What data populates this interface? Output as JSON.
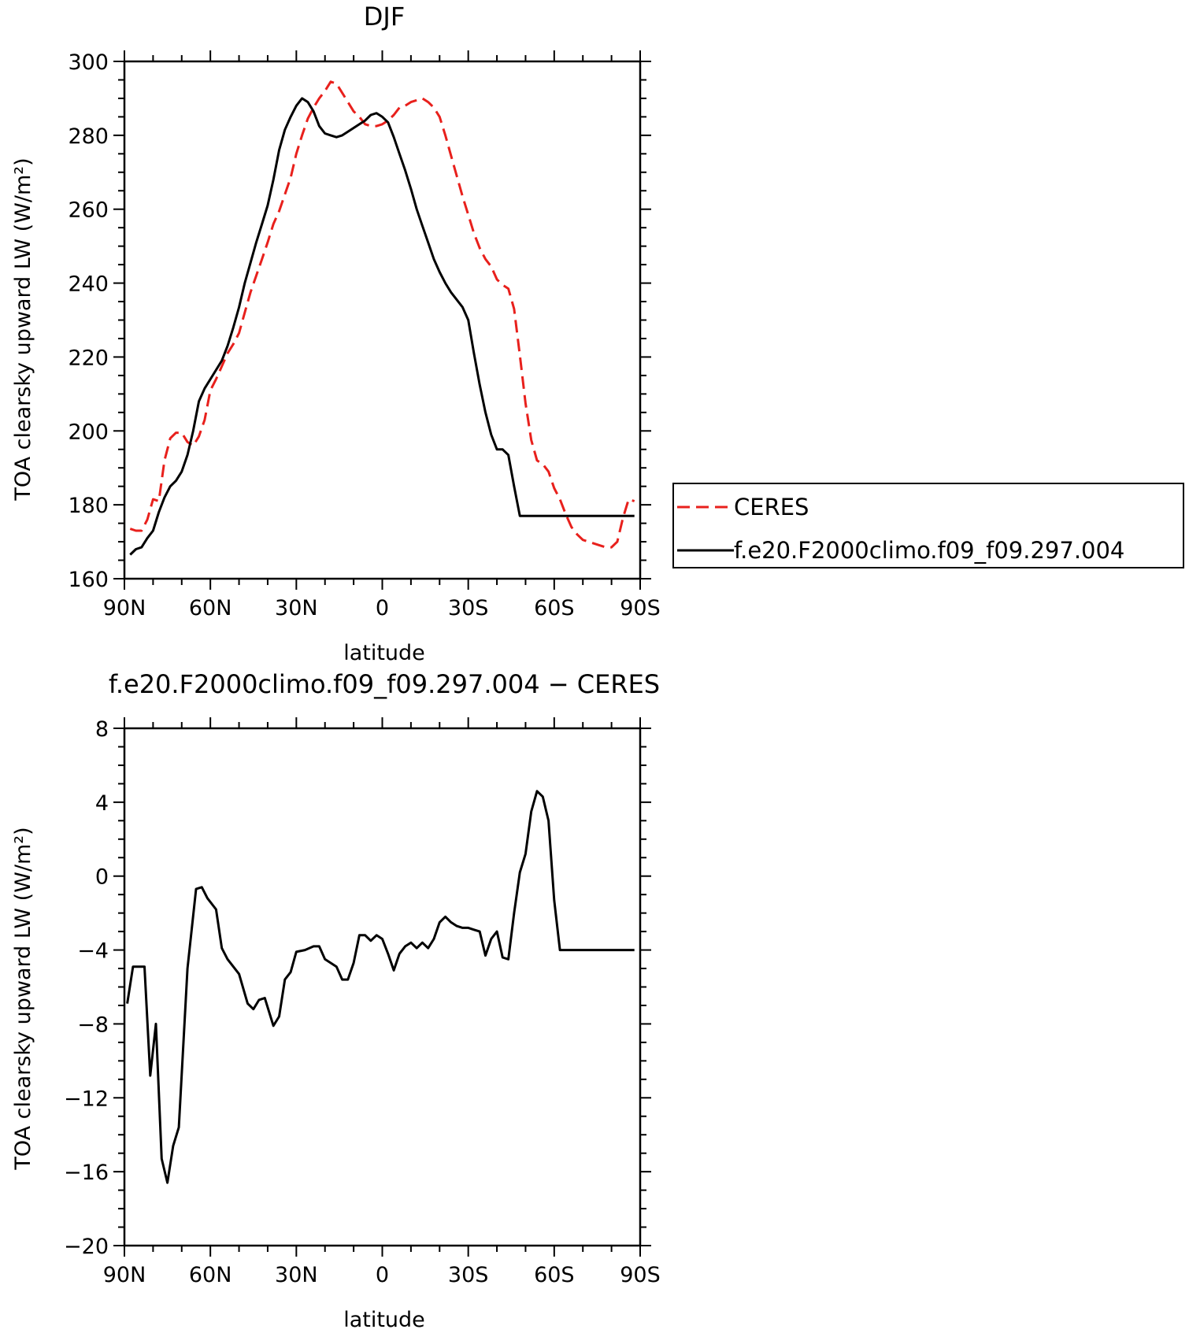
{
  "chart_data": [
    {
      "type": "line",
      "title": "DJF",
      "xlabel": "latitude",
      "ylabel": "TOA clearsky upward LW (W/m²)",
      "xlim": [
        -90,
        90
      ],
      "ylim": [
        160,
        300
      ],
      "yticks": [
        160,
        180,
        200,
        220,
        240,
        260,
        280,
        300
      ],
      "xticks": [
        -90,
        -60,
        -30,
        0,
        30,
        60,
        90
      ],
      "xticklabels": [
        "90N",
        "60N",
        "30N",
        "0",
        "30S",
        "60S",
        "90S"
      ],
      "legend_position": "right",
      "x": [
        -88,
        -86,
        -84,
        -82,
        -80,
        -78,
        -76,
        -74,
        -72,
        -70,
        -68,
        -66,
        -64,
        -62,
        -60,
        -58,
        -56,
        -54,
        -52,
        -50,
        -48,
        -46,
        -44,
        -42,
        -40,
        -38,
        -36,
        -34,
        -32,
        -30,
        -28,
        -26,
        -24,
        -22,
        -20,
        -18,
        -16,
        -14,
        -12,
        -10,
        -8,
        -6,
        -4,
        -2,
        0,
        2,
        4,
        6,
        8,
        10,
        12,
        14,
        16,
        18,
        20,
        22,
        24,
        26,
        28,
        30,
        32,
        34,
        36,
        38,
        40,
        42,
        44,
        46,
        48,
        50,
        52,
        54,
        56,
        58,
        60,
        62,
        64,
        66,
        68,
        70,
        72,
        74,
        76,
        78,
        80,
        82,
        84,
        86,
        88
      ],
      "series": [
        {
          "name": "CERES",
          "color": "#e8201c",
          "dash": true,
          "values": [
            173.5,
            173.0,
            173.0,
            176.0,
            181.5,
            181.0,
            192.0,
            198.0,
            199.5,
            199.5,
            197.0,
            196.0,
            198.5,
            203.0,
            211.0,
            214.0,
            217.5,
            221.0,
            223.5,
            226.5,
            232.0,
            237.5,
            242.0,
            246.5,
            251.0,
            256.0,
            259.5,
            264.0,
            268.5,
            275.0,
            280.0,
            284.5,
            287.5,
            290.0,
            292.0,
            294.5,
            294.0,
            291.5,
            289.0,
            286.5,
            285.0,
            283.0,
            282.5,
            282.5,
            283.0,
            284.0,
            285.5,
            287.5,
            288.0,
            289.0,
            289.5,
            290.0,
            289.0,
            287.5,
            285.0,
            280.0,
            274.5,
            269.0,
            263.5,
            258.5,
            253.5,
            249.5,
            246.5,
            244.5,
            241.0,
            239.5,
            238.5,
            233.0,
            220.5,
            207.5,
            197.5,
            192.0,
            191.0,
            189.0,
            184.5,
            181.5,
            177.5,
            174.0,
            172.0,
            170.5,
            170.0,
            169.5,
            169.0,
            168.5,
            168.5,
            170.0,
            176.5,
            181.5,
            181.0
          ]
        },
        {
          "name": "f.e20.F2000climo.f09_f09.297.004",
          "color": "#000000",
          "dash": false,
          "values": [
            166.5,
            168.0,
            168.5,
            171.0,
            173.0,
            178.0,
            182.0,
            185.0,
            186.5,
            189.0,
            193.5,
            200.0,
            208.0,
            211.5,
            214.0,
            216.5,
            219.0,
            223.0,
            228.0,
            233.5,
            240.0,
            245.5,
            251.0,
            256.0,
            261.0,
            268.0,
            276.0,
            281.5,
            285.0,
            288.0,
            290.0,
            289.0,
            286.5,
            282.5,
            280.5,
            280.0,
            279.5,
            280.0,
            281.0,
            282.0,
            283.0,
            284.0,
            285.5,
            286.0,
            285.0,
            283.5,
            279.5,
            275.0,
            270.5,
            265.5,
            260.0,
            255.5,
            251.0,
            246.5,
            243.0,
            240.0,
            237.5,
            235.5,
            233.5,
            230.0,
            221.0,
            212.5,
            205.0,
            199.0,
            195.0,
            195.0,
            193.5,
            185.0,
            177.0,
            177.0,
            177.0,
            177.0,
            177.0,
            177.0,
            177.0,
            177.0,
            177.0,
            177.0,
            177.0,
            177.0,
            177.0,
            177.0,
            177.0,
            177.0,
            177.0,
            177.0,
            177.0,
            177.0,
            177.0
          ]
        }
      ]
    },
    {
      "type": "line",
      "title": "f.e20.F2000climo.f09_f09.297.004 − CERES",
      "xlabel": "latitude",
      "ylabel": "TOA clearsky upward LW (W/m²)",
      "xlim": [
        -90,
        90
      ],
      "ylim": [
        -20,
        8
      ],
      "yticks": [
        -20,
        -16,
        -12,
        -8,
        -4,
        0,
        4,
        8
      ],
      "yticklabels": [
        "−20",
        "−16",
        "−12",
        "−8",
        "−4",
        "0",
        "4",
        "8"
      ],
      "xticks": [
        -90,
        -60,
        -30,
        0,
        30,
        60,
        90
      ],
      "xticklabels": [
        "90N",
        "60N",
        "30N",
        "0",
        "30S",
        "60S",
        "90S"
      ],
      "x": [
        -89,
        -87,
        -85,
        -83,
        -81,
        -79,
        -77,
        -75,
        -73,
        -71,
        -68,
        -65,
        -63,
        -61,
        -58,
        -56,
        -54,
        -50,
        -47,
        -45,
        -43,
        -41,
        -38,
        -36,
        -34,
        -32,
        -30,
        -27,
        -24,
        -22,
        -20,
        -18,
        -16,
        -14,
        -12,
        -10,
        -8,
        -6,
        -4,
        -2,
        0,
        2,
        4,
        6,
        8,
        10,
        12,
        14,
        16,
        18,
        20,
        22,
        24,
        26,
        28,
        30,
        32,
        34,
        36,
        38,
        40,
        42,
        44,
        46,
        48,
        50,
        52,
        54,
        56,
        58,
        60,
        62,
        64,
        66,
        68,
        70,
        72,
        74,
        76,
        78,
        80,
        82,
        84,
        86,
        88
      ],
      "series": [
        {
          "name": "",
          "color": "#000000",
          "dash": false,
          "values": [
            -6.9,
            -4.9,
            -4.9,
            -4.9,
            -10.8,
            -8.0,
            -15.3,
            -16.6,
            -14.6,
            -13.6,
            -5.0,
            -0.7,
            -0.6,
            -1.2,
            -1.8,
            -3.9,
            -4.5,
            -5.3,
            -6.9,
            -7.2,
            -6.7,
            -6.6,
            -8.1,
            -7.6,
            -5.6,
            -5.2,
            -4.1,
            -4.0,
            -3.8,
            -3.8,
            -4.5,
            -4.7,
            -4.9,
            -5.6,
            -5.6,
            -4.7,
            -3.2,
            -3.2,
            -3.5,
            -3.2,
            -3.4,
            -4.2,
            -5.1,
            -4.2,
            -3.8,
            -3.6,
            -3.9,
            -3.6,
            -3.9,
            -3.4,
            -2.5,
            -2.2,
            -2.5,
            -2.7,
            -2.8,
            -2.8,
            -2.9,
            -3.0,
            -4.3,
            -3.4,
            -3.0,
            -4.4,
            -4.5,
            -2.0,
            0.2,
            1.2,
            3.5,
            4.6,
            4.3,
            3.0,
            -1.3,
            -4.0,
            -4.0,
            -4.0,
            -4.0,
            -4.0,
            -4.0,
            -4.0,
            -4.0,
            -4.0,
            -4.0,
            -4.0,
            -4.0,
            -4.0,
            -4.0
          ]
        }
      ]
    }
  ]
}
